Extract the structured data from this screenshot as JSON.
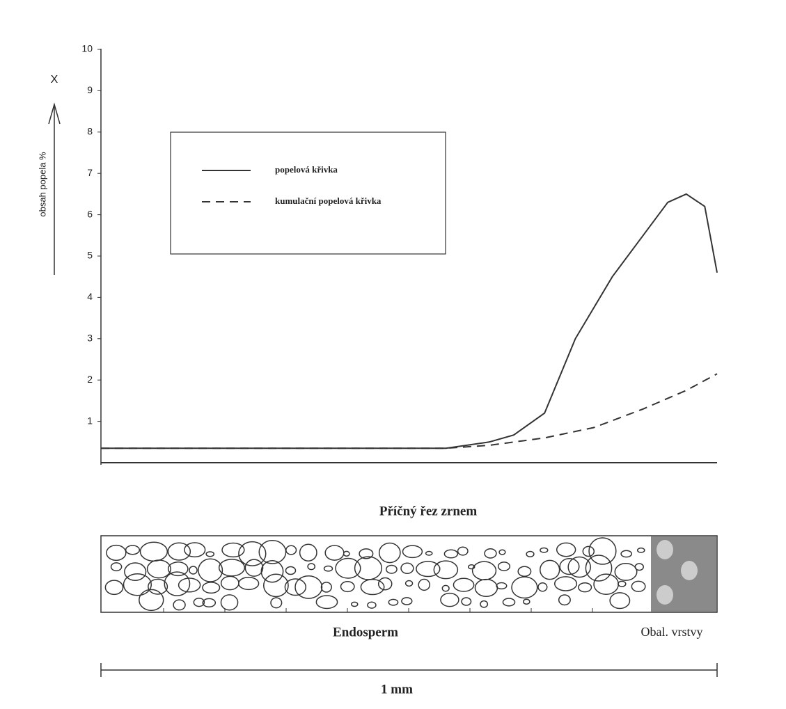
{
  "chart_data": {
    "type": "line",
    "y_axis_label": "obsah popela %",
    "y_axis_symbol": "X",
    "ylim": [
      0,
      10
    ],
    "yticks": [
      1,
      2,
      3,
      4,
      5,
      6,
      7,
      8,
      9,
      10
    ],
    "xlim": [
      0,
      1
    ],
    "series": [
      {
        "name": "popelová křivka",
        "color": "#333333",
        "dash": "solid",
        "x": [
          0,
          0.56,
          0.63,
          0.67,
          0.72,
          0.77,
          0.83,
          0.88,
          0.92,
          0.95,
          0.98,
          1.0
        ],
        "values": [
          0.35,
          0.35,
          0.5,
          0.67,
          1.2,
          3.0,
          4.5,
          5.5,
          6.3,
          6.5,
          6.2,
          4.6
        ]
      },
      {
        "name": "kumulační popelová křivka",
        "color": "#333333",
        "dash": "dashed",
        "x": [
          0,
          0.56,
          0.63,
          0.72,
          0.8,
          0.88,
          0.95,
          1.0
        ],
        "values": [
          0.35,
          0.35,
          0.42,
          0.6,
          0.85,
          1.3,
          1.75,
          2.15
        ]
      }
    ],
    "annotations": {
      "cross_section_title": "Příčný řez zrnem",
      "endosperm": "Endosperm",
      "outer_layers": "Obal. vrstvy",
      "scale": "1 mm"
    }
  }
}
